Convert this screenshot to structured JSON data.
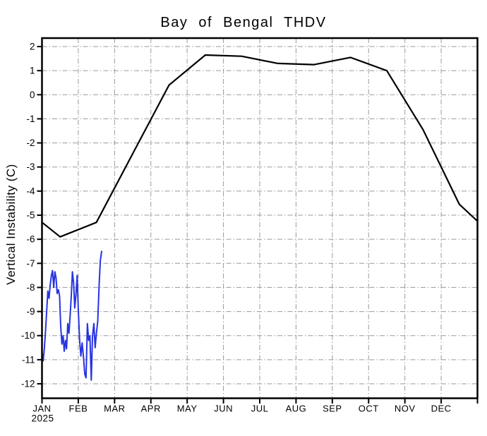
{
  "title": "Bay of Bengal THDV",
  "colors": {
    "background": "#ffffff",
    "frame": "#000000",
    "grid": "#9a9a9a",
    "climatology_line": "#000000",
    "daily_line": "#2734e0"
  },
  "chart_data": {
    "type": "line",
    "title": "Bay of Bengal THDV",
    "ylabel": "Vertical Instability (C)",
    "xlabel": "",
    "x_axis": {
      "tick_labels": [
        "JAN",
        "FEB",
        "MAR",
        "APR",
        "MAY",
        "JUN",
        "JUL",
        "AUG",
        "SEP",
        "OCT",
        "NOV",
        "DEC"
      ],
      "year_label": "2025",
      "unit": "months, equal spacing, full year"
    },
    "y_axis": {
      "ticks": [
        2,
        1,
        0,
        -1,
        -2,
        -3,
        -4,
        -5,
        -6,
        -7,
        -8,
        -9,
        -10,
        -11,
        -12
      ],
      "ylim": [
        -12.6,
        2.35
      ]
    },
    "grid": "gray dash-dot grid at every 1 C and every month",
    "legend": "none shown",
    "series": [
      {
        "name": "climatology-monthly",
        "color": "#000000",
        "width": 2.2,
        "x_months": [
          0,
          0.5,
          1.5,
          2.5,
          3.5,
          4.5,
          5.5,
          6.5,
          7.5,
          8.5,
          9.5,
          10.5,
          11.5,
          12
        ],
        "values": [
          -5.3,
          -5.9,
          -5.3,
          -2.45,
          0.4,
          1.65,
          1.6,
          1.3,
          1.25,
          1.55,
          1.0,
          -1.45,
          -4.55,
          -5.25
        ]
      },
      {
        "name": "daily-2025",
        "color": "#2734e0",
        "width": 2,
        "x_months": [
          0,
          0.032,
          0.065,
          0.097,
          0.129,
          0.161,
          0.194,
          0.226,
          0.258,
          0.29,
          0.323,
          0.355,
          0.387,
          0.419,
          0.452,
          0.484,
          0.516,
          0.548,
          0.581,
          0.613,
          0.645,
          0.677,
          0.71,
          0.742,
          0.774,
          0.806,
          0.839,
          0.871,
          0.903,
          0.935,
          0.968,
          1.0,
          1.036,
          1.071,
          1.107,
          1.143,
          1.179,
          1.214,
          1.25,
          1.286,
          1.321,
          1.357,
          1.393,
          1.429,
          1.464,
          1.5,
          1.536,
          1.571,
          1.607,
          1.643
        ],
        "values": [
          -10.75,
          -11.05,
          -10.55,
          -9.8,
          -9.0,
          -8.15,
          -8.45,
          -7.9,
          -7.5,
          -7.3,
          -8.0,
          -7.35,
          -7.6,
          -8.25,
          -8.1,
          -8.35,
          -9.6,
          -10.35,
          -10.0,
          -10.65,
          -10.2,
          -10.55,
          -9.5,
          -9.9,
          -9.2,
          -8.4,
          -7.35,
          -7.8,
          -8.85,
          -8.3,
          -7.5,
          -8.9,
          -10.2,
          -10.85,
          -10.3,
          -10.9,
          -11.6,
          -11.75,
          -9.5,
          -10.2,
          -10.0,
          -11.85,
          -10.0,
          -9.5,
          -10.5,
          -9.9,
          -9.4,
          -8.0,
          -6.9,
          -6.5
        ]
      }
    ]
  }
}
